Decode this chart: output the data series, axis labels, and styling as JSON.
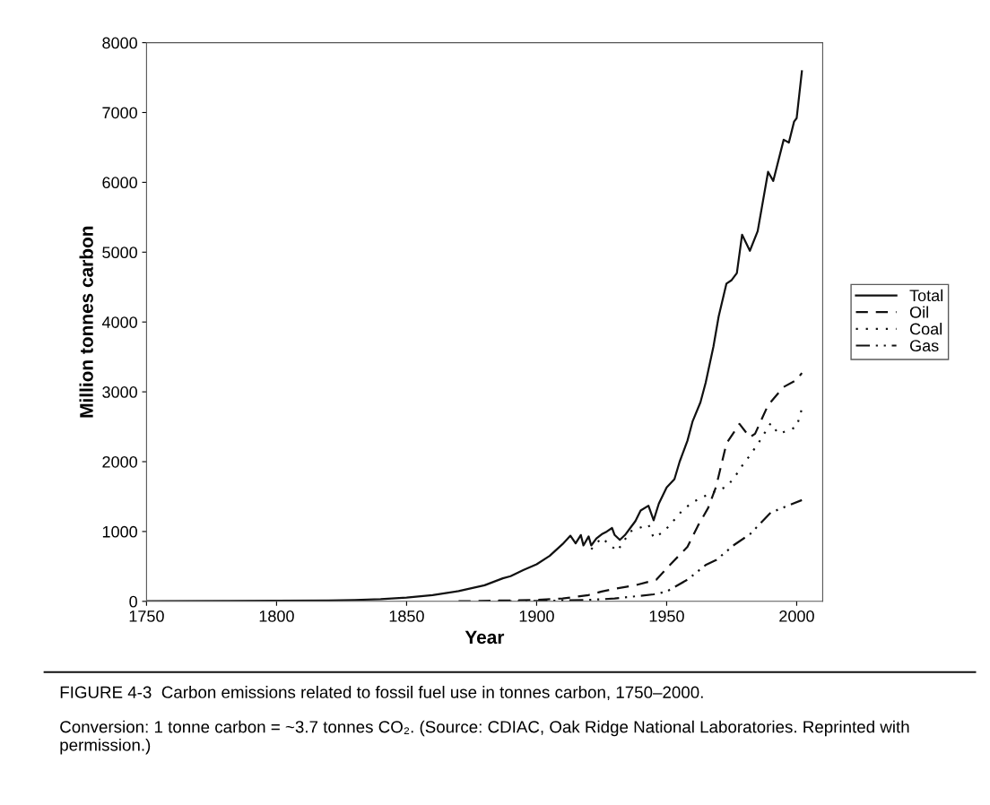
{
  "chart_data": {
    "type": "line",
    "xlabel": "Year",
    "ylabel": "Million tonnes carbon",
    "xlim": [
      1750,
      2010
    ],
    "ylim": [
      0,
      8000
    ],
    "xticks": [
      1750,
      1800,
      1850,
      1900,
      1950,
      2000
    ],
    "yticks": [
      0,
      1000,
      2000,
      3000,
      4000,
      5000,
      6000,
      7000,
      8000
    ],
    "grid": false,
    "legend": "right",
    "annotations": [
      "FIGURE 4-3  Carbon emissions related to fossil fuel use in tonnes carbon, 1750–2000.",
      "Conversion: 1 tonne carbon = ~3.7 tonnes CO₂. (Source: CDIAC, Oak Ridge National Laboratories. Reprinted with permission.)"
    ],
    "series": [
      {
        "name": "Total",
        "color": "#111111",
        "line_style": "solid",
        "x": [
          1750,
          1780,
          1800,
          1820,
          1830,
          1840,
          1850,
          1860,
          1870,
          1880,
          1887,
          1890,
          1895,
          1900,
          1905,
          1910,
          1913,
          1915,
          1917,
          1918,
          1920,
          1921,
          1923,
          1925,
          1927,
          1929,
          1930,
          1932,
          1934,
          1936,
          1938,
          1940,
          1943,
          1945,
          1947,
          1950,
          1953,
          1955,
          1958,
          1960,
          1963,
          1965,
          1968,
          1970,
          1973,
          1975,
          1977,
          1979,
          1982,
          1985,
          1989,
          1991,
          1995,
          1997,
          1999,
          2000,
          2002
        ],
        "values": [
          3,
          5,
          8,
          12,
          20,
          30,
          54,
          90,
          147,
          230,
          330,
          360,
          450,
          530,
          650,
          820,
          940,
          830,
          950,
          800,
          930,
          800,
          900,
          960,
          1000,
          1050,
          950,
          880,
          950,
          1050,
          1150,
          1300,
          1370,
          1160,
          1400,
          1630,
          1750,
          2000,
          2300,
          2580,
          2850,
          3130,
          3650,
          4080,
          4550,
          4600,
          4700,
          5250,
          5020,
          5300,
          6150,
          6020,
          6610,
          6570,
          6870,
          6920,
          7590
        ]
      },
      {
        "name": "Oil",
        "color": "#111111",
        "line_style": "dashed",
        "x": [
          1870,
          1900,
          1910,
          1920,
          1925,
          1930,
          1938,
          1946,
          1952,
          1958,
          1962,
          1966,
          1969,
          1973,
          1978,
          1982,
          1984,
          1989,
          1995,
          2000,
          2002
        ],
        "values": [
          1,
          20,
          40,
          90,
          140,
          180,
          230,
          310,
          550,
          780,
          1080,
          1340,
          1640,
          2260,
          2540,
          2350,
          2400,
          2810,
          3070,
          3170,
          3270
        ]
      },
      {
        "name": "Coal",
        "color": "#111111",
        "line_style": "dotted",
        "x": [
          1921,
          1925,
          1931,
          1936,
          1943,
          1945,
          1949,
          1953,
          1956,
          1960,
          1967,
          1973,
          1976,
          1979,
          1982,
          1985,
          1990,
          1993,
          1997,
          2000,
          2002
        ],
        "values": [
          745,
          910,
          720,
          1000,
          1100,
          910,
          1000,
          1170,
          1300,
          1420,
          1550,
          1640,
          1770,
          1940,
          2090,
          2250,
          2550,
          2400,
          2450,
          2500,
          2760
        ]
      },
      {
        "name": "Gas",
        "color": "#111111",
        "line_style": "dashdot",
        "x": [
          1885,
          1900,
          1920,
          1930,
          1940,
          1945,
          1950,
          1958,
          1965,
          1969,
          1976,
          1982,
          1990,
          2002
        ],
        "values": [
          2,
          5,
          20,
          40,
          80,
          100,
          140,
          310,
          520,
          590,
          810,
          960,
          1270,
          1450
        ]
      }
    ]
  }
}
